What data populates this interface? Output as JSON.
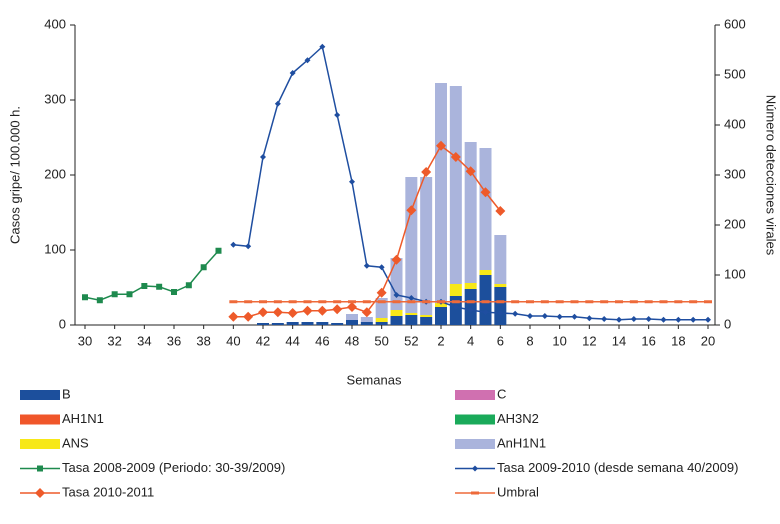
{
  "chart_data": {
    "type": "combo",
    "x_label": "Semanas",
    "y_label": "Casos gripe/ 100.000 h.",
    "y2_label": "Número detecciones virales",
    "categories": [
      "30",
      null,
      "32",
      null,
      "34",
      null,
      "36",
      null,
      "38",
      null,
      "40",
      null,
      "42",
      null,
      "44",
      null,
      "46",
      null,
      "48",
      null,
      "50",
      null,
      "52",
      null,
      "2",
      null,
      "4",
      null,
      "6",
      null,
      "8",
      null,
      "10",
      null,
      "12",
      null,
      "14",
      null,
      "16",
      null,
      "18",
      null,
      "20"
    ],
    "ylim": [
      0,
      400
    ],
    "yticks": [
      0,
      100,
      200,
      300,
      400
    ],
    "y2lim": [
      0,
      600
    ],
    "y2ticks": [
      0,
      100,
      200,
      300,
      400,
      500,
      600
    ],
    "series": [
      {
        "name": "B",
        "kind": "bar",
        "axis": "y2",
        "color": "#1c4f9c",
        "values": [
          null,
          null,
          null,
          null,
          null,
          null,
          null,
          null,
          null,
          null,
          null,
          null,
          4,
          4,
          6,
          6,
          6,
          4,
          10,
          6,
          6,
          18,
          20,
          16,
          36,
          58,
          72,
          100,
          76,
          null,
          null,
          null,
          null,
          null,
          null,
          null,
          null,
          null,
          null,
          null,
          null,
          null,
          null
        ]
      },
      {
        "name": "C",
        "kind": "bar",
        "axis": "y2",
        "color": "#d070b0",
        "values": [
          null,
          null,
          null,
          null,
          null,
          null,
          null,
          null,
          null,
          null,
          null,
          null,
          null,
          null,
          null,
          null,
          null,
          null,
          null,
          null,
          null,
          null,
          null,
          null,
          null,
          null,
          null,
          null,
          null,
          null,
          null,
          null,
          null,
          null,
          null,
          null,
          null,
          null,
          null,
          null,
          null,
          null,
          null
        ]
      },
      {
        "name": "AH1N1",
        "kind": "bar",
        "axis": "y2",
        "color": "#f0562a",
        "values": [
          null,
          null,
          null,
          null,
          null,
          null,
          null,
          null,
          null,
          null,
          null,
          null,
          null,
          null,
          null,
          null,
          null,
          null,
          null,
          null,
          null,
          null,
          null,
          null,
          null,
          null,
          null,
          null,
          null,
          null,
          null,
          null,
          null,
          null,
          null,
          null,
          null,
          null,
          null,
          null,
          null,
          null,
          null
        ]
      },
      {
        "name": "AH3N2",
        "kind": "bar",
        "axis": "y2",
        "color": "#1aaa5a",
        "values": [
          null,
          null,
          null,
          null,
          null,
          null,
          null,
          null,
          null,
          null,
          null,
          null,
          null,
          null,
          null,
          null,
          null,
          null,
          null,
          null,
          null,
          null,
          null,
          null,
          null,
          null,
          null,
          null,
          null,
          null,
          null,
          null,
          null,
          null,
          null,
          null,
          null,
          null,
          null,
          null,
          null,
          null,
          null
        ]
      },
      {
        "name": "ANS",
        "kind": "bar",
        "axis": "y2",
        "color": "#f7e818",
        "values": [
          null,
          null,
          null,
          null,
          null,
          null,
          null,
          null,
          null,
          null,
          null,
          null,
          null,
          null,
          null,
          null,
          null,
          null,
          null,
          null,
          8,
          12,
          4,
          4,
          8,
          24,
          12,
          10,
          6,
          null,
          null,
          null,
          null,
          null,
          null,
          null,
          null,
          null,
          null,
          null,
          null,
          null,
          null
        ]
      },
      {
        "name": "AnH1N1",
        "kind": "bar",
        "axis": "y2",
        "color": "#aab4dc",
        "values": [
          null,
          null,
          null,
          null,
          null,
          null,
          null,
          null,
          null,
          null,
          null,
          null,
          null,
          null,
          null,
          null,
          null,
          null,
          12,
          10,
          40,
          104,
          272,
          276,
          440,
          396,
          282,
          244,
          98,
          null,
          null,
          null,
          null,
          null,
          null,
          null,
          null,
          null,
          null,
          null,
          null,
          null,
          null
        ]
      },
      {
        "name": "Tasa 2008-2009 (Periodo: 30-39/2009)",
        "kind": "line",
        "marker": "square",
        "color": "#1e8a4e",
        "values": [
          37,
          33,
          41,
          41,
          52,
          51,
          44,
          53,
          77,
          99,
          null,
          null,
          null,
          null,
          null,
          null,
          null,
          null,
          null,
          null,
          null,
          null,
          null,
          null,
          null,
          null,
          null,
          null,
          null,
          null,
          null,
          null,
          null,
          null,
          null,
          null,
          null,
          null,
          null,
          null,
          null,
          null,
          null
        ]
      },
      {
        "name": "Tasa 2009-2010 (desde semana 40/2009)",
        "kind": "line",
        "marker": "diamond-small",
        "color": "#1f4ea0",
        "values": [
          null,
          null,
          null,
          null,
          null,
          null,
          null,
          null,
          null,
          null,
          107,
          105,
          224,
          295,
          336,
          353,
          371,
          280,
          191,
          79,
          77,
          40,
          36,
          31,
          31,
          24,
          20,
          17,
          16,
          15,
          12,
          12,
          11,
          11,
          9,
          8,
          7,
          8,
          8,
          7,
          7,
          7,
          7
        ]
      },
      {
        "name": "Tasa 2010-2011",
        "kind": "line",
        "marker": "diamond",
        "color": "#ee5a2a",
        "values": [
          null,
          null,
          null,
          null,
          null,
          null,
          null,
          null,
          null,
          null,
          11,
          11,
          17,
          17,
          16,
          19,
          19,
          21,
          24,
          17,
          43,
          87,
          153,
          204,
          239,
          224,
          205,
          177,
          152,
          null,
          null,
          null,
          null,
          null,
          null,
          null,
          null,
          null,
          null,
          null,
          null,
          null,
          null
        ]
      },
      {
        "name": "Umbral",
        "kind": "line",
        "marker": "dash",
        "color": "#ee6a3a",
        "values": [
          null,
          null,
          null,
          null,
          null,
          null,
          null,
          null,
          null,
          null,
          31,
          31,
          31,
          31,
          31,
          31,
          31,
          31,
          31,
          31,
          31,
          31,
          31,
          31,
          31,
          31,
          31,
          31,
          31,
          31,
          31,
          31,
          31,
          31,
          31,
          31,
          31,
          31,
          31,
          31,
          31,
          31,
          31
        ]
      }
    ]
  }
}
